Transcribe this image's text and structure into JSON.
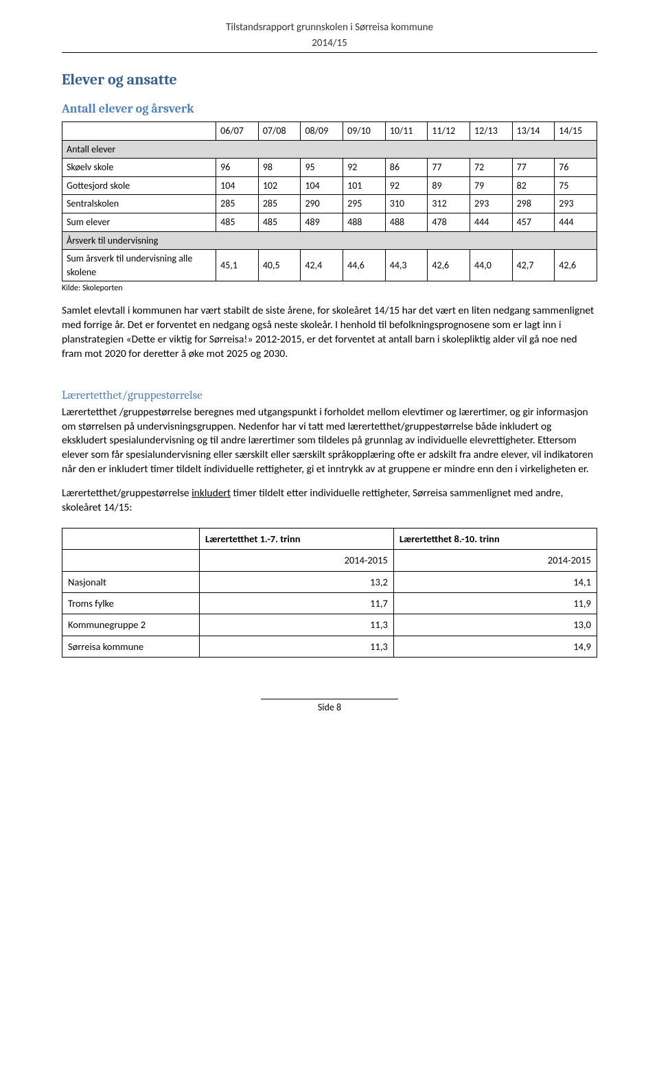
{
  "header": {
    "title": "Tilstandsrapport grunnskolen i Sørreisa kommune",
    "subtitle": "2014/15"
  },
  "section1": {
    "heading": "Elever og ansatte",
    "subheading": "Antall elever og årsverk"
  },
  "table1": {
    "year_headers": [
      "06/07",
      "07/08",
      "08/09",
      "09/10",
      "10/11",
      "11/12",
      "12/13",
      "13/14",
      "14/15"
    ],
    "section_a": "Antall elever",
    "rows_a": [
      {
        "label": "Skøelv skole",
        "v": [
          "96",
          "98",
          "95",
          "92",
          "86",
          "77",
          "72",
          "77",
          "76"
        ]
      },
      {
        "label": "Gottesjord skole",
        "v": [
          "104",
          "102",
          "104",
          "101",
          "92",
          "89",
          "79",
          "82",
          "75"
        ]
      },
      {
        "label": "Sentralskolen",
        "v": [
          "285",
          "285",
          "290",
          "295",
          "310",
          "312",
          "293",
          "298",
          "293"
        ]
      },
      {
        "label": "Sum elever",
        "v": [
          "485",
          "485",
          "489",
          "488",
          "488",
          "478",
          "444",
          "457",
          "444"
        ]
      }
    ],
    "section_b": "Årsverk til undervisning",
    "rows_b": [
      {
        "label": "Sum årsverk til undervisning alle skolene",
        "v": [
          "45,1",
          "40,5",
          "42,4",
          "44,6",
          "44,3",
          "42,6",
          "44,0",
          "42,7",
          "42,6"
        ]
      }
    ],
    "source": "Kilde: Skoleporten"
  },
  "para1": "Samlet elevtall i kommunen har vært stabilt de siste årene, for skoleåret 14/15 har det vært en liten nedgang sammenlignet med forrige år. Det er forventet en nedgang også neste skoleår. I henhold til befolkningsprognosene som er lagt inn i planstrategien «Dette er viktig for Sørreisa!» 2012-2015, er det forventet at antall barn i skolepliktig alder vil gå noe ned fram mot 2020 for deretter å øke mot 2025 og 2030.",
  "section2": {
    "heading": "Lærertetthet/gruppestørrelse"
  },
  "para2": "Lærertetthet /gruppestørrelse beregnes med utgangspunkt i forholdet mellom elevtimer og lærertimer, og gir informasjon om størrelsen på undervisningsgruppen. Nedenfor har vi tatt med lærertetthet/gruppestørrelse både inkludert og ekskludert spesialundervisning og til andre lærertimer som tildeles på grunnlag av individuelle elevrettigheter. Ettersom elever som får spesialundervisning eller særskilt eller særskilt språkopplæring ofte er adskilt fra andre elever, vil indikatoren når den er inkludert timer tildelt individuelle rettigheter, gi et inntrykk av at gruppene er mindre enn den i virkeligheten er.",
  "para3_pre": "Lærertetthet/gruppestørrelse ",
  "para3_u": "inkludert",
  "para3_post": " timer tildelt etter individuelle rettigheter, Sørreisa sammenlignet med andre, skoleåret 14/15:",
  "table2": {
    "col_headers": [
      "Lærertetthet 1.-7. trinn",
      "Lærertetthet 8.-10. trinn"
    ],
    "year_row": [
      "2014-2015",
      "2014-2015"
    ],
    "rows": [
      {
        "label": "Nasjonalt",
        "v": [
          "13,2",
          "14,1"
        ]
      },
      {
        "label": "Troms fylke",
        "v": [
          "11,7",
          "11,9"
        ]
      },
      {
        "label": "Kommunegruppe 2",
        "v": [
          "11,3",
          "13,0"
        ]
      },
      {
        "label": "Sørreisa kommune",
        "v": [
          "11,3",
          "14,9"
        ]
      }
    ]
  },
  "footer": {
    "page": "Side 8"
  }
}
